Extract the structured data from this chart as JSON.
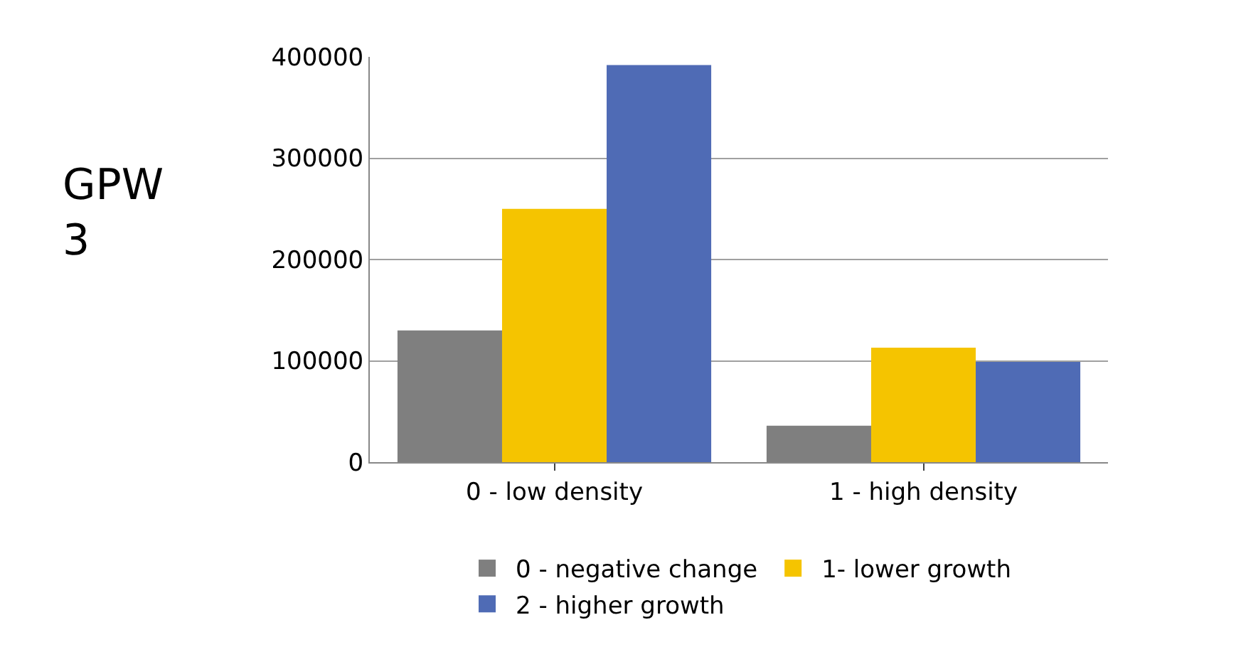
{
  "chart_data": {
    "type": "bar",
    "ylabel": "GPW 3",
    "categories": [
      "0 - low density",
      "1 - high density"
    ],
    "series": [
      {
        "name": "0 - negative change",
        "color": "#7f7f7f",
        "values": [
          130000,
          36000
        ]
      },
      {
        "name": "1- lower growth",
        "color": "#f5c400",
        "values": [
          250000,
          113000
        ]
      },
      {
        "name": "2 - higher growth",
        "color": "#4f6bb5",
        "values": [
          392000,
          99000
        ]
      }
    ],
    "ylim": [
      0,
      400000
    ],
    "yticks": [
      0,
      100000,
      200000,
      300000,
      400000
    ],
    "grid": "y",
    "legend": "bottom"
  }
}
